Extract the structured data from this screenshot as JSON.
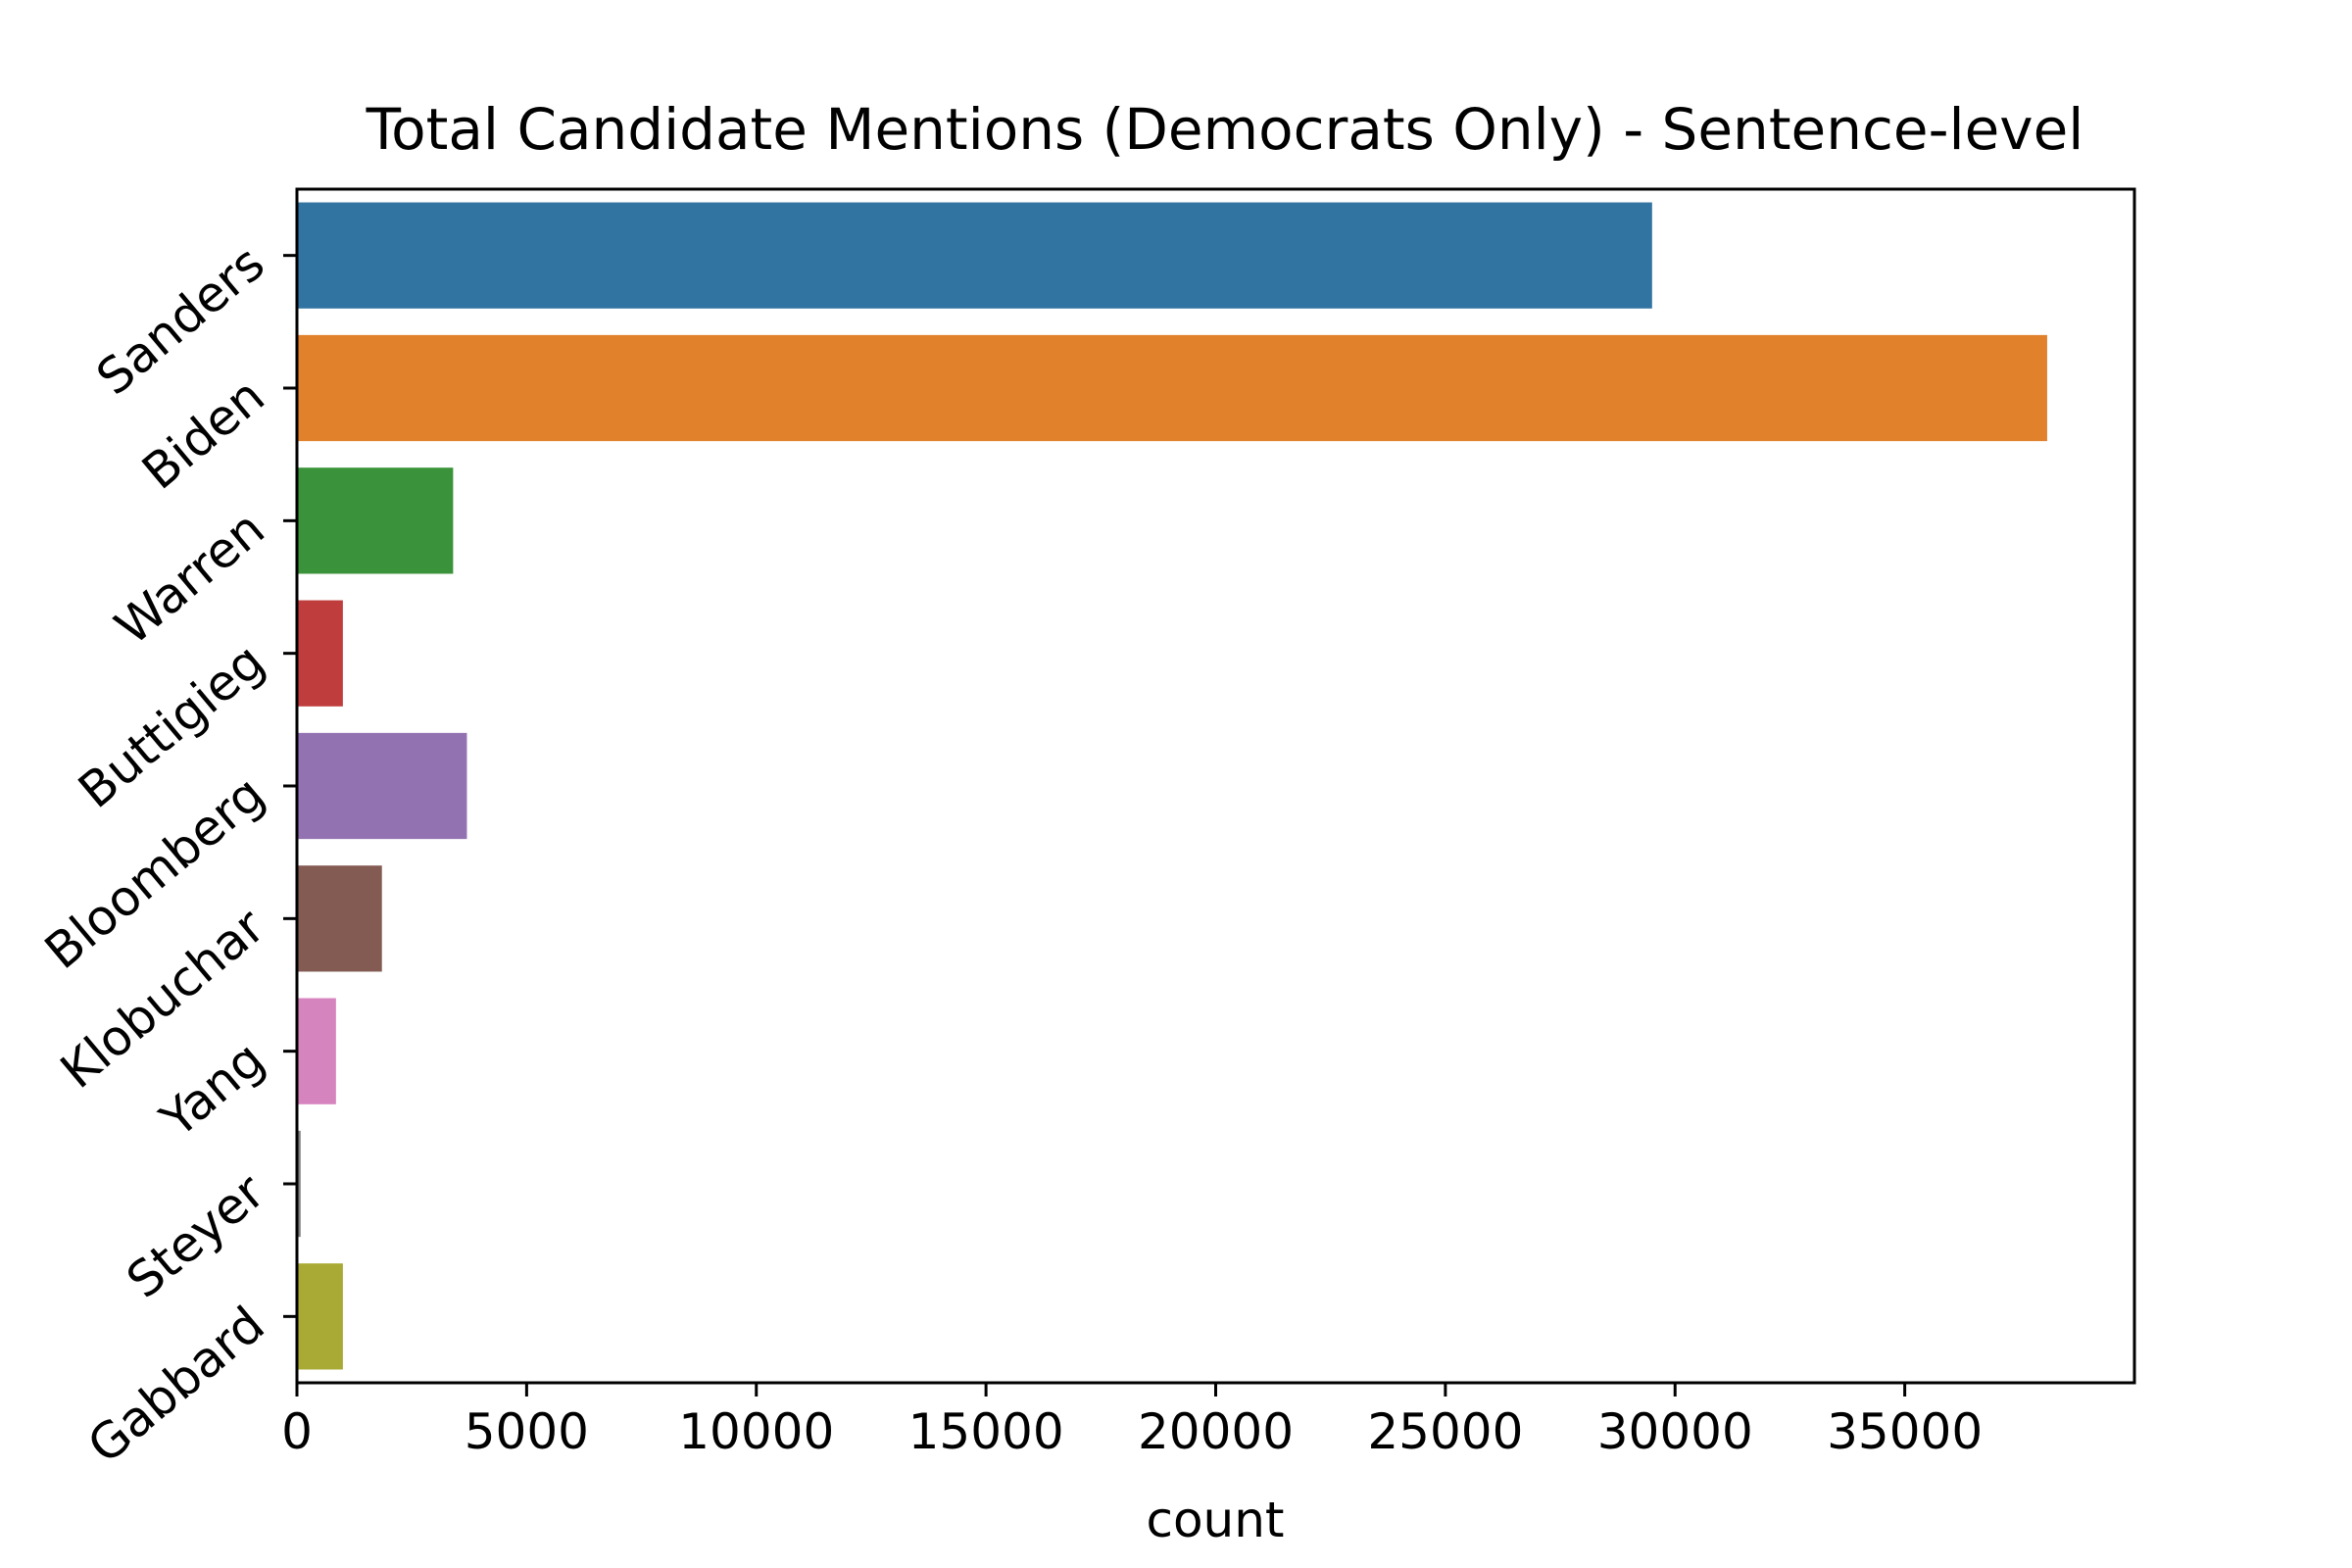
{
  "chart_data": {
    "type": "bar",
    "orientation": "horizontal",
    "title": "Total Candidate Mentions (Democrats Only) - Sentence-level",
    "xlabel": "count",
    "ylabel": "",
    "categories": [
      "Sanders",
      "Biden",
      "Warren",
      "Buttigieg",
      "Bloomberg",
      "Klobuchar",
      "Yang",
      "Steyer",
      "Gabbard"
    ],
    "values": [
      29500,
      38100,
      3400,
      1000,
      3700,
      1850,
      850,
      80,
      1000
    ],
    "colors": [
      "#3274a1",
      "#e1812c",
      "#3a923a",
      "#c03d3e",
      "#9372b2",
      "#845b53",
      "#d684bd",
      "#7f7f7f",
      "#a9aa35"
    ],
    "xlim": [
      0,
      40000
    ],
    "xticks": [
      "0",
      "5000",
      "10000",
      "15000",
      "20000",
      "25000",
      "30000",
      "35000"
    ],
    "ytick_rotation": 40,
    "grid": false,
    "legend": "none"
  }
}
